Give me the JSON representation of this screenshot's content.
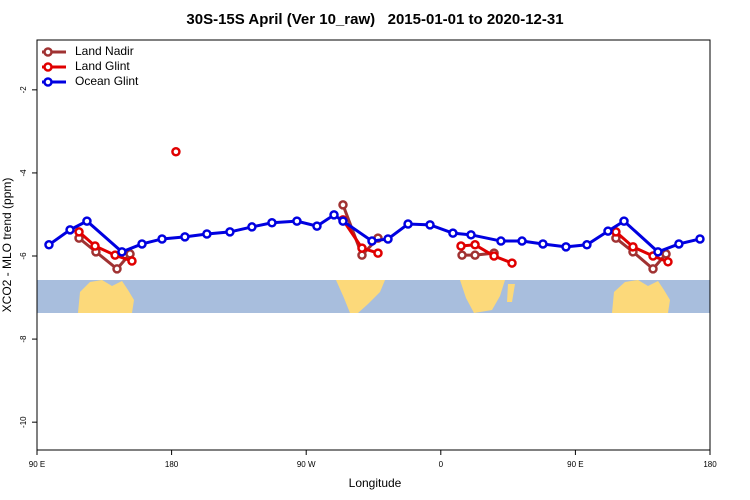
{
  "chart_data": {
    "type": "line",
    "title": "30S-15S April (Ver 10_raw)   2015-01-01 to 2020-12-31",
    "x_label": "Longitude",
    "y_label": "XCO2 - MLO trend (ppm)",
    "xlim": [
      90,
      540
    ],
    "ylim": [
      -10.67,
      -0.8
    ],
    "xticks": [
      {
        "value": 90,
        "label": "90 E"
      },
      180,
      {
        "value": 270,
        "label": "90 W"
      },
      {
        "value": 360,
        "label": "0"
      },
      {
        "value": 450,
        "label": "90 E"
      },
      {
        "value": 540,
        "label": "180"
      }
    ],
    "yticks": [
      -10,
      -8,
      -6,
      -4,
      -2
    ],
    "legend": "top-left",
    "series": [
      {
        "name": "Land Nadir",
        "color": "#a03232",
        "x": [
          118.1,
          129.4,
          143.5,
          152.2,
          null,
          294.6,
          307.3,
          318.0,
          null,
          374.2,
          382.9,
          395.6,
          null,
          477.1,
          488.5,
          501.9,
          510.6
        ],
        "values": [
          -5.57,
          -5.9,
          -6.31,
          -5.95,
          null,
          -4.77,
          -5.98,
          -5.57,
          null,
          -5.98,
          -5.98,
          -5.93,
          null,
          -5.57,
          -5.9,
          -6.31,
          -5.95
        ]
      },
      {
        "name": "Land Glint",
        "color": "#e00000",
        "x": [
          118.1,
          128.8,
          142.2,
          153.5,
          null,
          182.9,
          null,
          294.6,
          307.3,
          318.0,
          null,
          373.5,
          382.9,
          395.6,
          407.6,
          null,
          477.1,
          488.5,
          501.9,
          511.9
        ],
        "values": [
          -5.42,
          -5.76,
          -5.98,
          -6.12,
          null,
          -3.49,
          null,
          -5.13,
          -5.81,
          -5.93,
          null,
          -5.76,
          -5.73,
          -6.0,
          -6.17,
          null,
          -5.42,
          -5.78,
          -6.0,
          -6.14
        ]
      },
      {
        "name": "Ocean Glint",
        "color": "#0000e0",
        "x": [
          98.0,
          112.1,
          123.4,
          146.8,
          160.2,
          173.6,
          188.9,
          203.6,
          219.0,
          233.7,
          247.1,
          263.8,
          277.2,
          288.6,
          294.6,
          314.0,
          324.7,
          338.1,
          352.8,
          368.1,
          380.2,
          400.2,
          414.3,
          428.3,
          443.7,
          457.7,
          471.8,
          482.5,
          505.2,
          519.2,
          533.3
        ],
        "values": [
          -5.73,
          -5.37,
          -5.16,
          -5.9,
          -5.71,
          -5.59,
          -5.54,
          -5.47,
          -5.42,
          -5.3,
          -5.2,
          -5.16,
          -5.28,
          -5.01,
          -5.16,
          -5.64,
          -5.59,
          -5.23,
          -5.25,
          -5.45,
          -5.49,
          -5.64,
          -5.64,
          -5.71,
          -5.78,
          -5.73,
          -5.4,
          -5.16,
          -5.9,
          -5.71,
          -5.59
        ]
      }
    ]
  }
}
